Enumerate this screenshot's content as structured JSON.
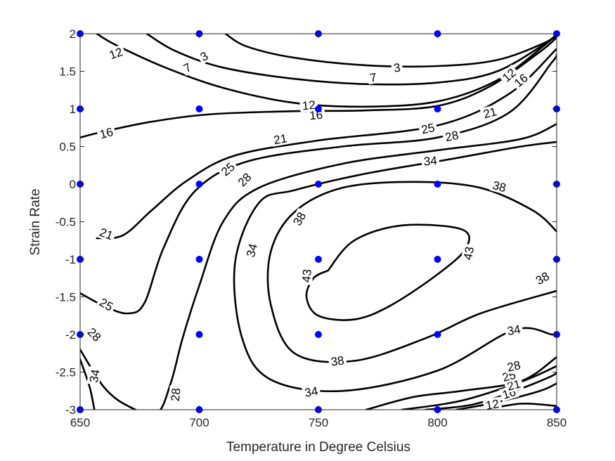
{
  "chart_data": {
    "type": "contour",
    "xlabel": "Temperature in Degree Celsius",
    "ylabel": "Strain Rate",
    "xlim": [
      650,
      850
    ],
    "ylim": [
      -3,
      2
    ],
    "xticks": [
      650,
      700,
      750,
      800,
      850
    ],
    "yticks": [
      -3,
      -2.5,
      -2,
      -1.5,
      -1,
      -0.5,
      0,
      0.5,
      1,
      1.5,
      2
    ],
    "xtick_labels": [
      "650",
      "700",
      "750",
      "800",
      "850"
    ],
    "ytick_labels": [
      "-3",
      "-2.5",
      "-2",
      "-1.5",
      "-1",
      "-0.5",
      "0",
      "0.5",
      "1",
      "1.5",
      "2"
    ],
    "grid": false,
    "line_color": "#000000",
    "marker_color": "#0000ff",
    "data_points": [
      {
        "x": 650,
        "y": 2
      },
      {
        "x": 700,
        "y": 2
      },
      {
        "x": 750,
        "y": 2
      },
      {
        "x": 800,
        "y": 2
      },
      {
        "x": 850,
        "y": 2
      },
      {
        "x": 650,
        "y": 1
      },
      {
        "x": 700,
        "y": 1
      },
      {
        "x": 750,
        "y": 1
      },
      {
        "x": 800,
        "y": 1
      },
      {
        "x": 850,
        "y": 1
      },
      {
        "x": 650,
        "y": 0
      },
      {
        "x": 700,
        "y": 0
      },
      {
        "x": 750,
        "y": 0
      },
      {
        "x": 800,
        "y": 0
      },
      {
        "x": 850,
        "y": 0
      },
      {
        "x": 650,
        "y": -1
      },
      {
        "x": 700,
        "y": -1
      },
      {
        "x": 750,
        "y": -1
      },
      {
        "x": 800,
        "y": -1
      },
      {
        "x": 850,
        "y": -1
      },
      {
        "x": 650,
        "y": -2
      },
      {
        "x": 700,
        "y": -2
      },
      {
        "x": 750,
        "y": -2
      },
      {
        "x": 800,
        "y": -2
      },
      {
        "x": 850,
        "y": -2
      },
      {
        "x": 650,
        "y": -3
      },
      {
        "x": 700,
        "y": -3
      },
      {
        "x": 750,
        "y": -3
      },
      {
        "x": 800,
        "y": -3
      },
      {
        "x": 850,
        "y": -3
      }
    ],
    "contours": [
      {
        "level": 3,
        "points": [
          [
            711,
            2
          ],
          [
            720,
            1.83
          ],
          [
            740,
            1.68
          ],
          [
            770,
            1.58
          ],
          [
            800,
            1.57
          ],
          [
            825,
            1.65
          ],
          [
            845,
            1.88
          ],
          [
            850,
            2
          ]
        ]
      },
      {
        "level": 7,
        "points": [
          [
            678,
            2
          ],
          [
            690,
            1.77
          ],
          [
            710,
            1.55
          ],
          [
            740,
            1.4
          ],
          [
            770,
            1.33
          ],
          [
            800,
            1.35
          ],
          [
            825,
            1.5
          ],
          [
            848,
            1.93
          ],
          [
            850,
            2
          ]
        ]
      },
      {
        "level": 12,
        "points": [
          [
            657,
            2
          ],
          [
            665,
            1.85
          ],
          [
            685,
            1.56
          ],
          [
            710,
            1.28
          ],
          [
            740,
            1.08
          ],
          [
            770,
            1.03
          ],
          [
            800,
            1.1
          ],
          [
            825,
            1.38
          ],
          [
            845,
            1.85
          ],
          [
            850,
            2
          ]
        ]
      },
      {
        "level": 16,
        "points": [
          [
            650,
            0.62
          ],
          [
            660,
            0.7
          ],
          [
            680,
            0.83
          ],
          [
            705,
            0.93
          ],
          [
            740,
            0.97
          ],
          [
            770,
            0.98
          ],
          [
            800,
            1.04
          ],
          [
            822,
            1.3
          ],
          [
            843,
            1.76
          ],
          [
            850,
            1.95
          ]
        ]
      },
      {
        "level": 21,
        "points": [
          [
            657,
            -0.72
          ],
          [
            668,
            -0.68
          ],
          [
            680,
            -0.35
          ],
          [
            695,
            0.05
          ],
          [
            715,
            0.38
          ],
          [
            750,
            0.58
          ],
          [
            800,
            0.78
          ],
          [
            830,
            1.2
          ],
          [
            850,
            1.8
          ]
        ]
      },
      {
        "level": 21,
        "points": [
          [
            795,
            -3
          ],
          [
            815,
            -2.93
          ],
          [
            835,
            -2.72
          ],
          [
            848,
            -2.55
          ],
          [
            850,
            -2.5
          ]
        ]
      },
      {
        "level": 25,
        "points": [
          [
            650,
            -1.45
          ],
          [
            660,
            -1.62
          ],
          [
            670,
            -1.72
          ],
          [
            677,
            -1.58
          ],
          [
            685,
            -0.85
          ],
          [
            698,
            -0.1
          ],
          [
            720,
            0.3
          ],
          [
            760,
            0.5
          ],
          [
            800,
            0.62
          ],
          [
            830,
            0.95
          ],
          [
            848,
            1.62
          ],
          [
            850,
            1.72
          ]
        ]
      },
      {
        "level": 25,
        "points": [
          [
            785,
            -3
          ],
          [
            810,
            -2.88
          ],
          [
            835,
            -2.63
          ],
          [
            850,
            -2.42
          ]
        ]
      },
      {
        "level": 16,
        "points": [
          [
            808,
            -3
          ],
          [
            825,
            -2.9
          ],
          [
            843,
            -2.75
          ],
          [
            850,
            -2.65
          ]
        ]
      },
      {
        "level": 12,
        "points": [
          [
            820,
            -3
          ],
          [
            835,
            -2.92
          ],
          [
            850,
            -2.95
          ]
        ]
      },
      {
        "level": 28,
        "points": [
          [
            650,
            -2.2
          ],
          [
            660,
            -2.7
          ],
          [
            670,
            -2.95
          ],
          [
            682,
            -3.05
          ],
          [
            688,
            -2.65
          ],
          [
            693,
            -2.05
          ],
          [
            700,
            -1.35
          ],
          [
            710,
            -0.5
          ],
          [
            725,
            -0.05
          ],
          [
            760,
            0.27
          ],
          [
            800,
            0.45
          ],
          [
            835,
            0.6
          ],
          [
            850,
            0.8
          ]
        ]
      },
      {
        "level": 28,
        "points": [
          [
            770,
            -3
          ],
          [
            790,
            -2.83
          ],
          [
            810,
            -2.75
          ],
          [
            835,
            -2.62
          ],
          [
            850,
            -2.3
          ]
        ]
      },
      {
        "level": 34,
        "points": [
          [
            650,
            -2.33
          ],
          [
            654,
            -2.7
          ],
          [
            656,
            -3
          ]
        ]
      },
      {
        "level": 34,
        "points": [
          [
            850,
            0.56
          ],
          [
            835,
            0.5
          ],
          [
            805,
            0.33
          ],
          [
            770,
            0.14
          ],
          [
            740,
            -0.08
          ],
          [
            725,
            -0.25
          ],
          [
            715,
            -1.05
          ],
          [
            718,
            -2.05
          ],
          [
            730,
            -2.6
          ],
          [
            760,
            -2.75
          ],
          [
            800,
            -2.48
          ],
          [
            832,
            -1.94
          ],
          [
            848,
            -2.0
          ],
          [
            850,
            -2.02
          ]
        ]
      },
      {
        "level": 38,
        "points": [
          [
            850,
            -0.63
          ],
          [
            840,
            -0.35
          ],
          [
            818,
            -0.05
          ],
          [
            790,
            0.03
          ],
          [
            760,
            -0.05
          ],
          [
            740,
            -0.37
          ],
          [
            730,
            -0.9
          ],
          [
            730,
            -1.6
          ],
          [
            740,
            -2.25
          ],
          [
            765,
            -2.35
          ],
          [
            795,
            -2.05
          ],
          [
            818,
            -1.72
          ],
          [
            850,
            -1.42
          ]
        ]
      },
      {
        "level": 43,
        "points": [
          [
            754,
            -1.15
          ],
          [
            765,
            -0.75
          ],
          [
            785,
            -0.55
          ],
          [
            810,
            -0.6
          ],
          [
            812,
            -0.85
          ],
          [
            800,
            -1.2
          ],
          [
            780,
            -1.62
          ],
          [
            765,
            -1.8
          ],
          [
            750,
            -1.75
          ],
          [
            745,
            -1.5
          ],
          [
            748,
            -1.25
          ],
          [
            754,
            -1.15
          ]
        ]
      }
    ],
    "contour_labels": [
      {
        "text": "3",
        "x": 702,
        "y": 1.7,
        "angle": -30
      },
      {
        "text": "3",
        "x": 783,
        "y": 1.55,
        "angle": -8
      },
      {
        "text": "7",
        "x": 695,
        "y": 1.55,
        "angle": -30
      },
      {
        "text": "7",
        "x": 773,
        "y": 1.42,
        "angle": -10
      },
      {
        "text": "12",
        "x": 665,
        "y": 1.74,
        "angle": -20
      },
      {
        "text": "12",
        "x": 746,
        "y": 1.05,
        "angle": -5
      },
      {
        "text": "12",
        "x": 830,
        "y": 1.45,
        "angle": -40
      },
      {
        "text": "12",
        "x": 823,
        "y": -2.93,
        "angle": -10
      },
      {
        "text": "16",
        "x": 661,
        "y": 0.68,
        "angle": -15
      },
      {
        "text": "16",
        "x": 749,
        "y": 0.92,
        "angle": -5
      },
      {
        "text": "16",
        "x": 835,
        "y": 1.38,
        "angle": -40
      },
      {
        "text": "16",
        "x": 830,
        "y": -2.78,
        "angle": -18
      },
      {
        "text": "21",
        "x": 661,
        "y": -0.66,
        "angle": 20
      },
      {
        "text": "21",
        "x": 734,
        "y": 0.6,
        "angle": -10
      },
      {
        "text": "21",
        "x": 822,
        "y": 0.95,
        "angle": -15
      },
      {
        "text": "21",
        "x": 832,
        "y": -2.67,
        "angle": -15
      },
      {
        "text": "25",
        "x": 661,
        "y": -1.6,
        "angle": 30
      },
      {
        "text": "25",
        "x": 712,
        "y": 0.2,
        "angle": -40
      },
      {
        "text": "25",
        "x": 796,
        "y": 0.74,
        "angle": -12
      },
      {
        "text": "25",
        "x": 830,
        "y": -2.55,
        "angle": -15
      },
      {
        "text": "28",
        "x": 656,
        "y": -2.0,
        "angle": 45
      },
      {
        "text": "28",
        "x": 719,
        "y": 0.06,
        "angle": -45
      },
      {
        "text": "28",
        "x": 806,
        "y": 0.64,
        "angle": -12
      },
      {
        "text": "28",
        "x": 690,
        "y": -2.8,
        "angle": -85
      },
      {
        "text": "28",
        "x": 832,
        "y": -2.42,
        "angle": -12
      },
      {
        "text": "34",
        "x": 656,
        "y": -2.55,
        "angle": -80
      },
      {
        "text": "34",
        "x": 722,
        "y": -0.88,
        "angle": -75
      },
      {
        "text": "34",
        "x": 797,
        "y": 0.31,
        "angle": -5
      },
      {
        "text": "34",
        "x": 747,
        "y": -2.76,
        "angle": -10
      },
      {
        "text": "34",
        "x": 832,
        "y": -1.94,
        "angle": -10
      },
      {
        "text": "38",
        "x": 742,
        "y": -0.46,
        "angle": -60
      },
      {
        "text": "38",
        "x": 826,
        "y": -0.03,
        "angle": 15
      },
      {
        "text": "38",
        "x": 758,
        "y": -2.35,
        "angle": -8
      },
      {
        "text": "38",
        "x": 844,
        "y": -1.25,
        "angle": -30
      },
      {
        "text": "43",
        "x": 745,
        "y": -1.22,
        "angle": -85
      },
      {
        "text": "43",
        "x": 813,
        "y": -0.92,
        "angle": -80
      }
    ]
  }
}
